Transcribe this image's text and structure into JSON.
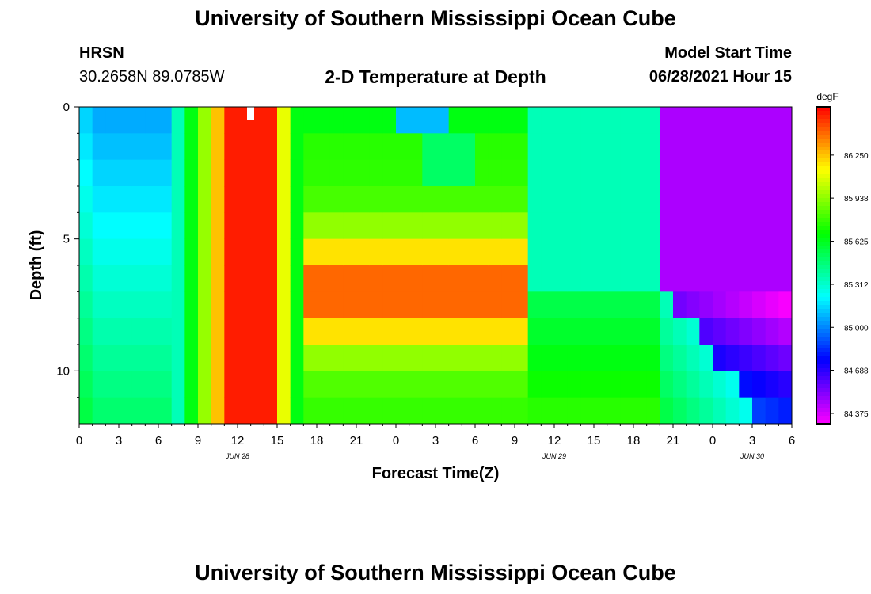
{
  "header": {
    "main_title": "University of Southern Mississippi Ocean Cube",
    "station": "HRSN",
    "coords": "30.2658N  89.0785W",
    "plot_title": "2-D Temperature at Depth",
    "model_start_label": "Model Start Time",
    "model_start_value": "06/28/2021 Hour 15"
  },
  "footer": {
    "title": "University of Southern Mississippi Ocean Cube"
  },
  "chart_data": {
    "type": "heatmap",
    "title": "2-D Temperature at Depth",
    "xlabel": "Forecast Time(Z)",
    "ylabel": "Depth (ft)",
    "colorbar_label": "degF",
    "x_hours_range": [
      0,
      54
    ],
    "x_tick_labels": [
      "0",
      "3",
      "6",
      "9",
      "12",
      "15",
      "18",
      "21",
      "0",
      "3",
      "6",
      "9",
      "12",
      "15",
      "18",
      "21",
      "0",
      "3",
      "6"
    ],
    "date_labels": [
      {
        "label": "JUN 28",
        "hour": 12
      },
      {
        "label": "JUN 29",
        "hour": 36
      },
      {
        "label": "JUN 30",
        "hour": 51
      }
    ],
    "y_range": [
      0,
      12
    ],
    "y_tick_labels": [
      "0",
      "5",
      "10"
    ],
    "y_tick_values": [
      0,
      5,
      10
    ],
    "colorbar_ticks": [
      "86.250",
      "85.938",
      "85.625",
      "85.312",
      "85.000",
      "84.688",
      "84.375"
    ],
    "colorbar_values": [
      86.25,
      85.938,
      85.625,
      85.312,
      85.0,
      84.688,
      84.375
    ],
    "value_range": [
      84.3,
      86.6
    ],
    "depth_rows": [
      0.5,
      1.5,
      2.5,
      3.5,
      4.5,
      5.5,
      6.5,
      7.5,
      8.5,
      9.5,
      10.5,
      11.5
    ],
    "description": "Temperature (degF) vs forecast hour and depth; model grid values estimated from colors",
    "marker_hour": 13
  }
}
